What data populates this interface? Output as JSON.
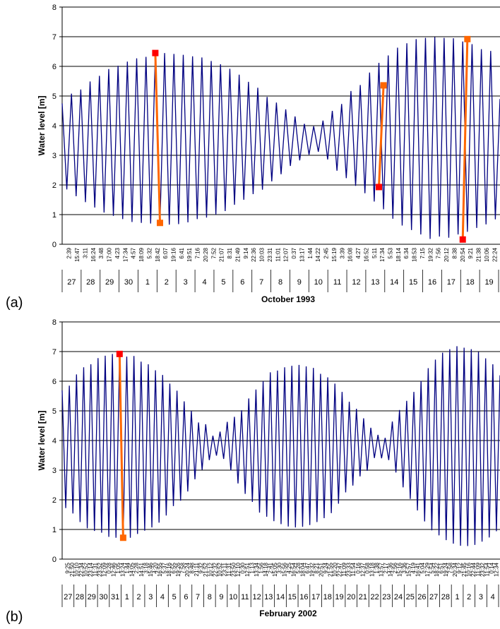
{
  "chart_data": [
    {
      "type": "line",
      "panel_label": "(a)",
      "ylabel": "Water level [m]",
      "xlabel": "October 1993",
      "ylim": [
        0,
        8
      ],
      "yticks": [
        0,
        1,
        2,
        3,
        4,
        5,
        6,
        7,
        8
      ],
      "grid": true,
      "colors": {
        "series": "#000080",
        "highlight": "#FF6600",
        "endpoint_red": "#FF0000",
        "endpoint_orange": "#FF6600"
      },
      "day_labels": [
        "27",
        "28",
        "29",
        "30",
        "1",
        "2",
        "3",
        "4",
        "5",
        "6",
        "7",
        "8",
        "9",
        "10",
        "11",
        "12",
        "13",
        "14",
        "15",
        "16",
        "17",
        "18",
        "19"
      ],
      "time_labels": [
        "2:39",
        "15:47",
        "3:11",
        "16:24",
        "3:48",
        "17:00",
        "4:23",
        "17:34",
        "4:57",
        "18:09",
        "5:32",
        "18:42",
        "6:07",
        "19:16",
        "6:41",
        "19:51",
        "7:16",
        "20:28",
        "7:52",
        "21:07",
        "8:31",
        "21:49",
        "9:14",
        "22:36",
        "10:03",
        "23:31",
        "11:01",
        "12:07",
        "0:37",
        "13:17",
        "1:44",
        "14:22",
        "2:45",
        "15:19",
        "3:39",
        "16:08",
        "4:27",
        "16:52",
        "5:11",
        "17:34",
        "5:53",
        "18:14",
        "6:34",
        "18:53",
        "7:15",
        "19:32",
        "7:56",
        "20:12",
        "8:38",
        "20:54",
        "9:21",
        "21:38",
        "10:06",
        "22:24"
      ],
      "series": [
        {
          "values": [
            4.75,
            1.85,
            5.08,
            1.62,
            5.22,
            1.42,
            5.49,
            1.24,
            5.68,
            1.07,
            5.91,
            0.96,
            6.02,
            0.85,
            6.16,
            0.75,
            6.27,
            0.72,
            6.32,
            0.7,
            6.4,
            0.68,
            6.45,
            0.66,
            6.42,
            0.68,
            6.39,
            0.74,
            6.34,
            0.85,
            6.3,
            0.9,
            6.18,
            1.0,
            6.07,
            1.12,
            5.92,
            1.33,
            5.72,
            1.5,
            5.48,
            1.69,
            5.28,
            1.84,
            4.97,
            2.12,
            4.78,
            2.36,
            4.55,
            2.64,
            4.31,
            2.83,
            4.06,
            3.02,
            3.98,
            3.12,
            4.17,
            2.86,
            4.5,
            2.48,
            4.73,
            2.23,
            5.17,
            1.97,
            5.37,
            1.72,
            5.79,
            1.44,
            6.12,
            1.18,
            6.37,
            0.86,
            6.63,
            0.63,
            6.78,
            0.48,
            6.92,
            0.33,
            6.96,
            0.18,
            6.99,
            0.26,
            6.96,
            0.22,
            6.95,
            0.33,
            6.84,
            0.42,
            6.75,
            0.55,
            6.58,
            0.67,
            6.52,
            0.84,
            4.9
          ]
        }
      ],
      "highlights": [
        {
          "from_index": 20,
          "to_index": 21,
          "from_value": 6.45,
          "to_value": 0.72
        },
        {
          "from_index": 68,
          "to_index": 69,
          "from_value": 1.93,
          "to_value": 5.36
        },
        {
          "from_index": 86,
          "to_index": 87,
          "from_value": 0.16,
          "to_value": 6.92
        }
      ]
    },
    {
      "type": "line",
      "panel_label": "(b)",
      "ylabel": "Water level [m]",
      "xlabel": "February 2002",
      "ylim": [
        0,
        8
      ],
      "yticks": [
        0,
        1,
        2,
        3,
        4,
        5,
        6,
        7,
        8
      ],
      "grid": true,
      "colors": {
        "series": "#000080",
        "highlight": "#FF6600",
        "endpoint_red": "#FF0000",
        "endpoint_orange": "#FF6600"
      },
      "day_labels": [
        "27",
        "28",
        "29",
        "30",
        "31",
        "1",
        "2",
        "3",
        "4",
        "5",
        "6",
        "7",
        "8",
        "9",
        "10",
        "11",
        "12",
        "13",
        "14",
        "15",
        "16",
        "17",
        "18",
        "19",
        "20",
        "21",
        "22",
        "23",
        "24",
        "25",
        "26",
        "27",
        "28",
        "1",
        "2",
        "3",
        "4"
      ],
      "time_labels": [
        "9:25",
        "21:50",
        "10:10",
        "22:34",
        "10:52",
        "23:14",
        "11:31",
        "23:52",
        "12:09",
        "0:28",
        "12:46",
        "1:05",
        "13:24",
        "1:44",
        "14:05",
        "2:28",
        "14:51",
        "3:18",
        "15:46",
        "4:20",
        "16:55",
        "5:37",
        "18:16",
        "6:55",
        "19:26",
        "7:58",
        "20:24",
        "8:48",
        "21:11",
        "9:32",
        "21:52",
        "10:12",
        "22:32",
        "10:52",
        "23:11",
        "11:31",
        "23:50",
        "12:10",
        "0:30",
        "12:51",
        "1:13",
        "13:34",
        "1:56",
        "14:18",
        "2:41",
        "15:05",
        "3:30",
        "15:56",
        "4:25",
        "16:54",
        "5:28",
        "18:04",
        "6:47",
        "19:32",
        "8:21",
        "20:51",
        "9:24",
        "21:55",
        "10:20",
        "22:47",
        "11:09",
        "23:33",
        "11:54",
        "0:16",
        "12:37",
        "0:58",
        "13:18",
        "1:38",
        "13:57",
        "2:17",
        "14:36",
        "2:56",
        "15:16",
        "3:36",
        "15:57",
        "4:19",
        "16:41",
        "5:04",
        "17:29",
        "5:54",
        "18:22",
        "6:51",
        "19:24",
        "7:58",
        "20:34",
        "9:12",
        "21:45",
        "10:16",
        "22:44",
        "11:09",
        "23:32",
        "11:54",
        "0:14",
        "12:34"
      ],
      "series": [
        {
          "values": [
            5.69,
            1.72,
            5.85,
            1.54,
            6.23,
            1.25,
            6.47,
            1.04,
            6.57,
            0.95,
            6.78,
            0.89,
            6.86,
            0.75,
            6.92,
            0.72,
            6.85,
            0.7,
            6.83,
            0.72,
            6.85,
            0.85,
            6.66,
            0.96,
            6.57,
            1.07,
            6.37,
            1.23,
            6.21,
            1.47,
            5.92,
            1.79,
            5.68,
            1.97,
            5.32,
            2.28,
            5.0,
            2.69,
            4.61,
            3.01,
            4.55,
            3.34,
            4.16,
            3.49,
            4.3,
            3.38,
            4.63,
            2.99,
            4.8,
            2.55,
            5.02,
            2.2,
            5.42,
            1.93,
            5.72,
            1.57,
            6.0,
            1.43,
            6.3,
            1.28,
            6.36,
            1.18,
            6.47,
            1.1,
            6.52,
            1.07,
            6.55,
            1.09,
            6.5,
            1.15,
            6.45,
            1.25,
            6.25,
            1.38,
            6.13,
            1.55,
            5.92,
            1.87,
            5.64,
            2.25,
            5.31,
            2.48,
            5.07,
            2.79,
            4.75,
            2.98,
            4.43,
            3.41,
            4.19,
            3.4,
            4.09,
            3.34,
            4.64,
            2.92,
            5.03,
            2.42,
            5.34,
            2.03,
            5.64,
            1.64,
            6.01,
            1.27,
            6.44,
            0.97,
            6.73,
            0.8,
            6.96,
            0.64,
            7.08,
            0.52,
            7.18,
            0.45,
            7.13,
            0.44,
            7.08,
            0.48,
            6.99,
            0.59,
            6.77,
            0.73,
            6.57,
            0.94,
            6.2
          ]
        }
      ],
      "highlights": [
        {
          "from_index": 16,
          "to_index": 17,
          "from_value": 6.92,
          "to_value": 0.72
        },
        {
          "from_index": 130,
          "to_index": 131,
          "from_value": 6.72,
          "to_value": 0.77
        },
        {
          "from_index": 134,
          "to_index": 135,
          "from_value": 7.18,
          "to_value": 0.44
        }
      ]
    }
  ]
}
